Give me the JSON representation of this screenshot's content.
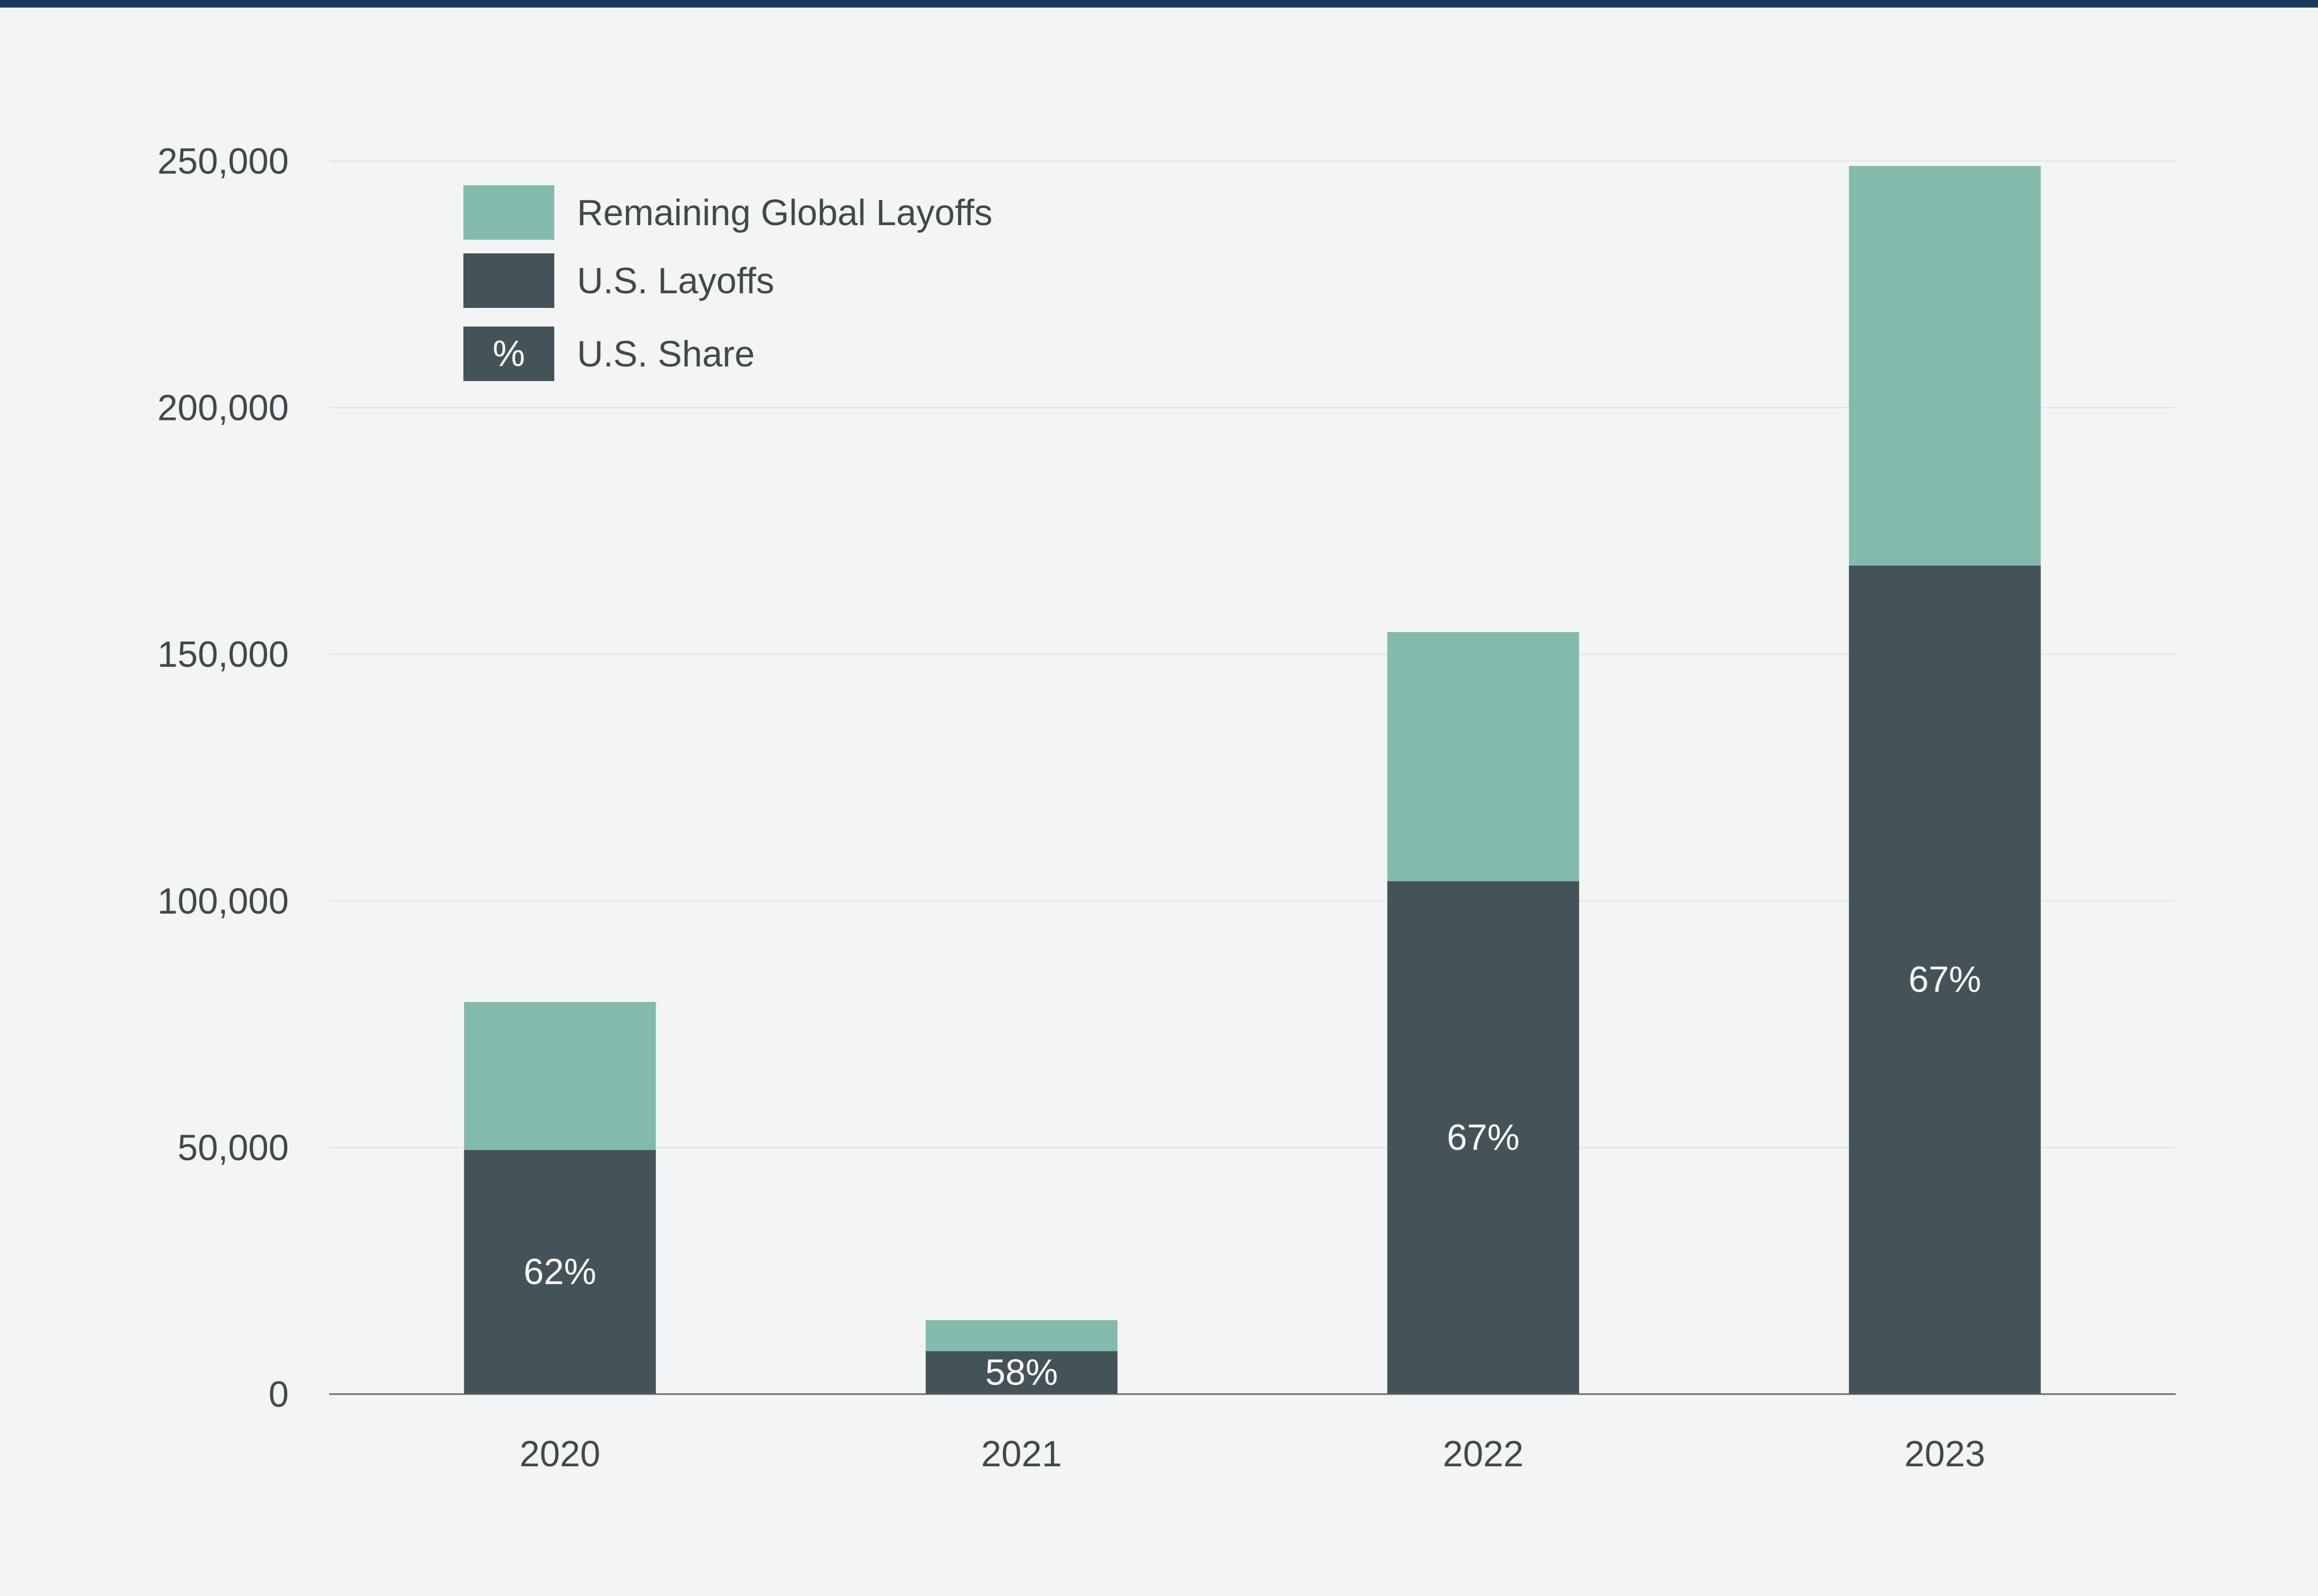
{
  "chart_data": {
    "type": "bar",
    "stacked": true,
    "categories": [
      "2020",
      "2021",
      "2022",
      "2023"
    ],
    "series": [
      {
        "name": "U.S. Layoffs",
        "color": "#435357",
        "values": [
          49500,
          8700,
          104000,
          168000
        ]
      },
      {
        "name": "Remaining Global Layoffs",
        "color": "#82bbad",
        "values": [
          30000,
          6300,
          50500,
          81000
        ]
      }
    ],
    "share_labels": [
      "62%",
      "58%",
      "67%",
      "67%"
    ],
    "share_legend": {
      "symbol": "%",
      "name": "U.S. Share"
    },
    "ylim": [
      0,
      250000
    ],
    "yticks": [
      0,
      50000,
      100000,
      150000,
      200000,
      250000
    ],
    "ytick_labels": [
      "0",
      "50,000",
      "100,000",
      "150,000",
      "200,000",
      "250,000"
    ],
    "title": "",
    "xlabel": "",
    "ylabel": "",
    "grid": true,
    "legend_position": "top-left"
  }
}
